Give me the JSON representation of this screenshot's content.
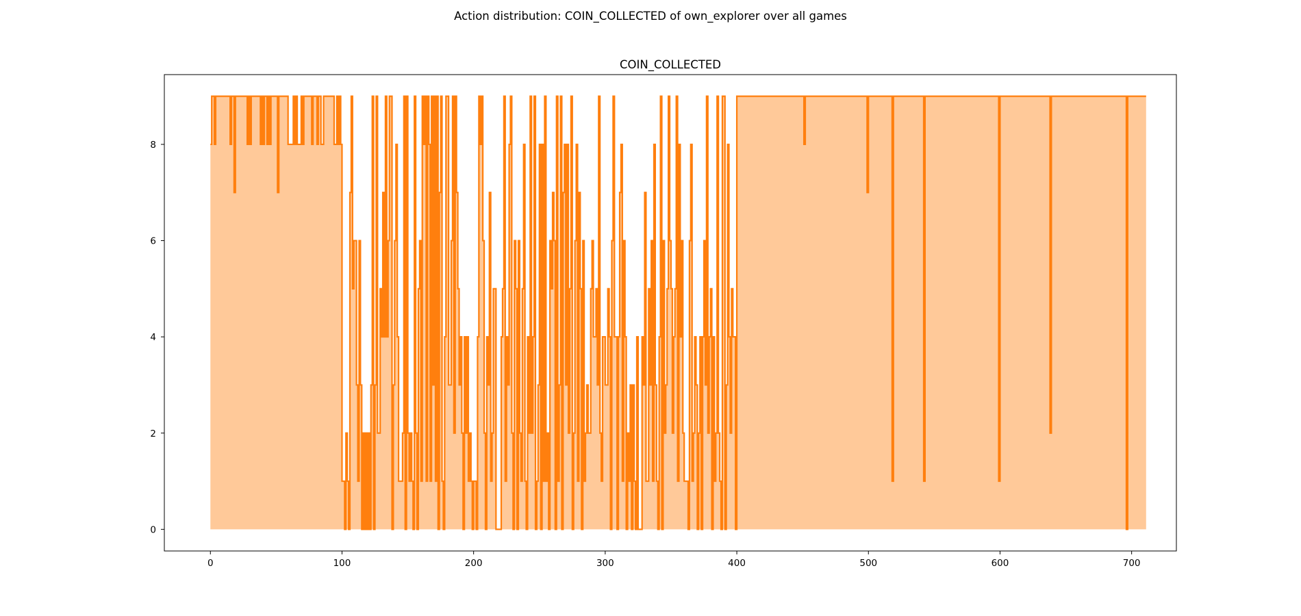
{
  "figure": {
    "suptitle": "Action distribution: COIN_COLLECTED of own_explorer over all games"
  },
  "chart_data": {
    "type": "area",
    "title": "COIN_COLLECTED",
    "xlabel": "",
    "ylabel": "",
    "xlim": [
      -35,
      734
    ],
    "ylim": [
      -0.45,
      9.45
    ],
    "xticks": [
      0,
      100,
      200,
      300,
      400,
      500,
      600,
      700
    ],
    "yticks": [
      0,
      2,
      4,
      6,
      8
    ],
    "grid": false,
    "legend": "none",
    "colors": {
      "line": "#ff7f0e",
      "fill": "#ffc999"
    },
    "x_start": 0,
    "series": [
      {
        "values": [
          8,
          9,
          9,
          8,
          9,
          9,
          9,
          9,
          9,
          9,
          9,
          9,
          9,
          9,
          9,
          8,
          9,
          9,
          7,
          9,
          9,
          9,
          9,
          9,
          9,
          9,
          9,
          9,
          8,
          9,
          8,
          9,
          9,
          9,
          9,
          9,
          9,
          9,
          8,
          9,
          8,
          9,
          9,
          8,
          9,
          8,
          9,
          9,
          9,
          9,
          9,
          7,
          9,
          9,
          9,
          9,
          9,
          9,
          9,
          8,
          8,
          8,
          8,
          9,
          8,
          9,
          8,
          8,
          8,
          9,
          8,
          9,
          9,
          9,
          9,
          9,
          9,
          8,
          9,
          9,
          9,
          8,
          9,
          9,
          8,
          8,
          9,
          9,
          9,
          9,
          9,
          9,
          9,
          9,
          8,
          8,
          9,
          8,
          9,
          8,
          1,
          1,
          0,
          2,
          1,
          0,
          7,
          9,
          5,
          6,
          6,
          3,
          1,
          6,
          3,
          0,
          2,
          0,
          2,
          0,
          2,
          0,
          3,
          9,
          0,
          3,
          9,
          2,
          2,
          5,
          4,
          7,
          4,
          9,
          4,
          6,
          9,
          9,
          0,
          3,
          6,
          8,
          4,
          1,
          1,
          1,
          2,
          9,
          0,
          9,
          2,
          1,
          2,
          1,
          0,
          9,
          2,
          0,
          5,
          6,
          1,
          9,
          8,
          9,
          1,
          9,
          8,
          1,
          9,
          3,
          9,
          1,
          9,
          0,
          7,
          9,
          1,
          0,
          4,
          9,
          9,
          3,
          3,
          6,
          9,
          2,
          9,
          7,
          5,
          3,
          4,
          2,
          0,
          4,
          2,
          4,
          1,
          2,
          1,
          0,
          1,
          1,
          0,
          4,
          9,
          8,
          9,
          6,
          2,
          0,
          4,
          3,
          7,
          1,
          2,
          5,
          5,
          0,
          0,
          0,
          0,
          4,
          5,
          9,
          1,
          4,
          3,
          8,
          9,
          2,
          0,
          6,
          5,
          0,
          6,
          2,
          1,
          5,
          8,
          1,
          0,
          4,
          2,
          9,
          2,
          4,
          9,
          0,
          1,
          3,
          8,
          0,
          8,
          1,
          9,
          1,
          2,
          0,
          6,
          5,
          7,
          6,
          0,
          9,
          1,
          3,
          9,
          0,
          7,
          8,
          3,
          8,
          2,
          5,
          9,
          0,
          2,
          6,
          8,
          1,
          7,
          5,
          0,
          6,
          1,
          2,
          3,
          2,
          2,
          5,
          6,
          4,
          4,
          5,
          3,
          9,
          2,
          1,
          4,
          4,
          3,
          3,
          5,
          4,
          0,
          6,
          9,
          4,
          4,
          0,
          4,
          7,
          8,
          1,
          6,
          4,
          0,
          2,
          1,
          3,
          0,
          3,
          1,
          0,
          4,
          0,
          0,
          0,
          4,
          3,
          7,
          1,
          1,
          5,
          3,
          6,
          1,
          8,
          3,
          1,
          0,
          4,
          9,
          0,
          6,
          2,
          3,
          5,
          9,
          6,
          5,
          2,
          4,
          5,
          9,
          1,
          8,
          4,
          6,
          2,
          1,
          1,
          1,
          0,
          6,
          8,
          1,
          2,
          4,
          3,
          0,
          2,
          4,
          0,
          4,
          6,
          3,
          9,
          2,
          4,
          5,
          0,
          4,
          1,
          2,
          9,
          2,
          1,
          0,
          9,
          9,
          0,
          3,
          8,
          4,
          2,
          5,
          4,
          4,
          0,
          9,
          9,
          9,
          9,
          9,
          9,
          9,
          9,
          9,
          9,
          9,
          9,
          9,
          9,
          9,
          9,
          9,
          9,
          9,
          9,
          9,
          9,
          9,
          9,
          9,
          9,
          9,
          9,
          9,
          9,
          9,
          9,
          9,
          9,
          9,
          9,
          9,
          9,
          9,
          9,
          9,
          9,
          9,
          9,
          9,
          9,
          9,
          9,
          9,
          9,
          9,
          8,
          9,
          9,
          9,
          9,
          9,
          9,
          9,
          9,
          9,
          9,
          9,
          9,
          9,
          9,
          9,
          9,
          9,
          9,
          9,
          9,
          9,
          9,
          9,
          9,
          9,
          9,
          9,
          9,
          9,
          9,
          9,
          9,
          9,
          9,
          9,
          9,
          9,
          9,
          9,
          9,
          9,
          9,
          9,
          9,
          9,
          9,
          9,
          7,
          9,
          9,
          9,
          9,
          9,
          9,
          9,
          9,
          9,
          9,
          9,
          9,
          9,
          9,
          9,
          9,
          9,
          9,
          1,
          9,
          9,
          9,
          9,
          9,
          9,
          9,
          9,
          9,
          9,
          9,
          9,
          9,
          9,
          9,
          9,
          9,
          9,
          9,
          9,
          9,
          9,
          9,
          1,
          9,
          9,
          9,
          9,
          9,
          9,
          9,
          9,
          9,
          9,
          9,
          9,
          9,
          9,
          9,
          9,
          9,
          9,
          9,
          9,
          9,
          9,
          9,
          9,
          9,
          9,
          9,
          9,
          9,
          9,
          9,
          9,
          9,
          9,
          9,
          9,
          9,
          9,
          9,
          9,
          9,
          9,
          9,
          9,
          9,
          9,
          9,
          9,
          9,
          9,
          9,
          9,
          9,
          9,
          9,
          9,
          1,
          9,
          9,
          9,
          9,
          9,
          9,
          9,
          9,
          9,
          9,
          9,
          9,
          9,
          9,
          9,
          9,
          9,
          9,
          9,
          9,
          9,
          9,
          9,
          9,
          9,
          9,
          9,
          9,
          9,
          9,
          9,
          9,
          9,
          9,
          9,
          9,
          9,
          9,
          2,
          9,
          9,
          9,
          9,
          9,
          9,
          9,
          9,
          9,
          9,
          9,
          9,
          9,
          9,
          9,
          9,
          9,
          9,
          9,
          9,
          9,
          9,
          9,
          9,
          9,
          9,
          9,
          9,
          9,
          9,
          9,
          9,
          9,
          9,
          9,
          9,
          9,
          9,
          9,
          9,
          9,
          9,
          9,
          9,
          9,
          9,
          9,
          9,
          9,
          9,
          9,
          9,
          9,
          9,
          9,
          9,
          9,
          0,
          9,
          9,
          9,
          9,
          9,
          9,
          9,
          9,
          9,
          9,
          9,
          9,
          9,
          9
        ]
      }
    ]
  }
}
